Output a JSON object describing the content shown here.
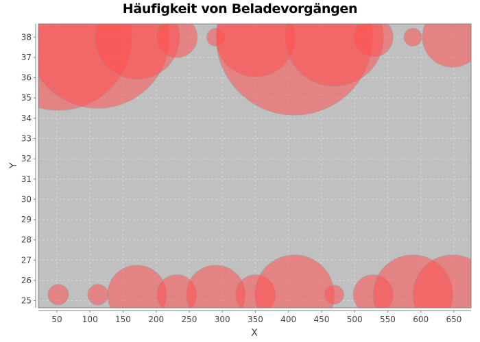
{
  "chart_data": {
    "type": "bubble",
    "title": "Häufigkeit von Beladevorgängen",
    "xlabel": "X",
    "ylabel": "Y",
    "xlim": [
      22,
      676
    ],
    "ylim": [
      24.65,
      38.65
    ],
    "x_ticks": [
      50,
      100,
      150,
      200,
      250,
      300,
      350,
      400,
      450,
      500,
      550,
      600,
      650
    ],
    "y_ticks": [
      25,
      26,
      27,
      28,
      29,
      30,
      31,
      32,
      33,
      34,
      35,
      36,
      37,
      38
    ],
    "grid": true,
    "legend": "none",
    "colors": {
      "plot_background": "#c0c0c0",
      "bubble_fill": "#ff5050",
      "grid": "#d8d8d8"
    },
    "points": [
      {
        "x": 52,
        "y": 38,
        "size": 107
      },
      {
        "x": 112,
        "y": 38,
        "size": 104
      },
      {
        "x": 171,
        "y": 38,
        "size": 62
      },
      {
        "x": 231,
        "y": 38,
        "size": 30
      },
      {
        "x": 290,
        "y": 38,
        "size": 13
      },
      {
        "x": 350,
        "y": 38,
        "size": 58
      },
      {
        "x": 409,
        "y": 38,
        "size": 114
      },
      {
        "x": 469,
        "y": 38,
        "size": 72
      },
      {
        "x": 528,
        "y": 38,
        "size": 29
      },
      {
        "x": 588,
        "y": 38,
        "size": 13
      },
      {
        "x": 648,
        "y": 38,
        "size": 44
      },
      {
        "x": 52,
        "y": 25.3,
        "size": 15
      },
      {
        "x": 112,
        "y": 25.3,
        "size": 15
      },
      {
        "x": 171,
        "y": 25.3,
        "size": 43
      },
      {
        "x": 231,
        "y": 25.3,
        "size": 29
      },
      {
        "x": 290,
        "y": 25.3,
        "size": 43
      },
      {
        "x": 350,
        "y": 25.3,
        "size": 29
      },
      {
        "x": 409,
        "y": 25.3,
        "size": 58
      },
      {
        "x": 469,
        "y": 25.3,
        "size": 14
      },
      {
        "x": 528,
        "y": 25.3,
        "size": 29
      },
      {
        "x": 588,
        "y": 25.3,
        "size": 58
      },
      {
        "x": 648,
        "y": 25.3,
        "size": 58
      }
    ]
  }
}
